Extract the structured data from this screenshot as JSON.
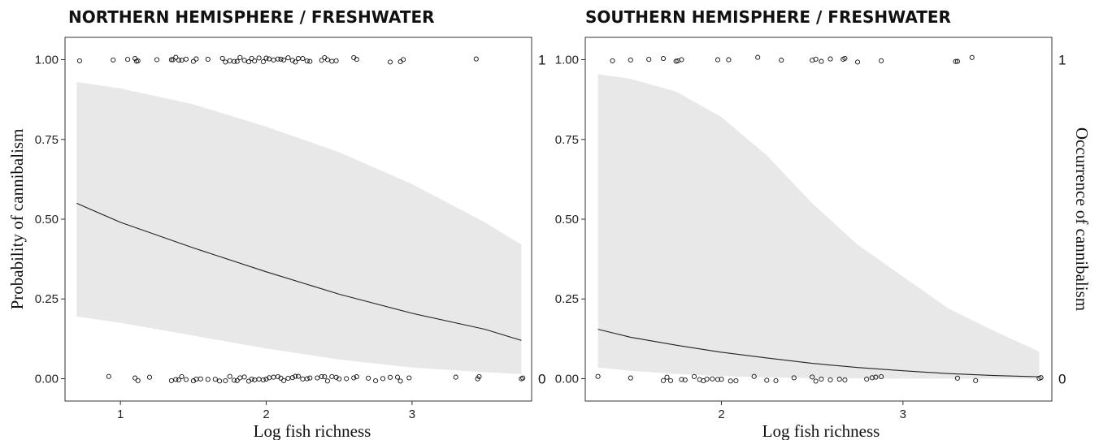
{
  "chart_data": [
    {
      "type": "line",
      "title": "NORTHERN HEMISPHERE / FRESHWATER",
      "xlabel": "Log fish richness",
      "ylabel": "Probability of cannibalism",
      "xlim": [
        0.62,
        3.82
      ],
      "ylim": [
        -0.07,
        1.07
      ],
      "x_ticks": [
        1,
        2,
        3
      ],
      "y_ticks": [
        0.0,
        0.25,
        0.5,
        0.75,
        1.0
      ],
      "y_tick_labels": [
        "0.00",
        "0.25",
        "0.50",
        "0.75",
        "1.00"
      ],
      "secondary_y_ticks": [
        0,
        1
      ],
      "secondary_y_tick_labels": [
        "0",
        "1"
      ],
      "secondary_ylabel": "",
      "grid": false,
      "fit": {
        "x": [
          0.7,
          1.0,
          1.5,
          2.0,
          2.5,
          3.0,
          3.5,
          3.75
        ],
        "y": [
          0.55,
          0.49,
          0.41,
          0.335,
          0.265,
          0.205,
          0.155,
          0.12
        ]
      },
      "ci_lower": {
        "x": [
          0.7,
          1.0,
          1.5,
          2.0,
          2.5,
          3.0,
          3.5,
          3.75
        ],
        "y": [
          0.195,
          0.175,
          0.135,
          0.095,
          0.06,
          0.035,
          0.02,
          0.015
        ]
      },
      "ci_upper": {
        "x": [
          0.7,
          1.0,
          1.5,
          2.0,
          2.5,
          3.0,
          3.5,
          3.75
        ],
        "y": [
          0.93,
          0.91,
          0.86,
          0.79,
          0.71,
          0.61,
          0.49,
          0.42
        ]
      },
      "points_occurrence_1_x": [
        0.72,
        0.95,
        1.05,
        1.1,
        1.11,
        1.12,
        1.25,
        1.35,
        1.36,
        1.38,
        1.4,
        1.42,
        1.45,
        1.5,
        1.52,
        1.6,
        1.7,
        1.72,
        1.75,
        1.78,
        1.8,
        1.82,
        1.85,
        1.88,
        1.9,
        1.92,
        1.95,
        1.98,
        2.0,
        2.02,
        2.05,
        2.08,
        2.1,
        2.12,
        2.15,
        2.18,
        2.2,
        2.22,
        2.25,
        2.28,
        2.3,
        2.38,
        2.4,
        2.42,
        2.45,
        2.48,
        2.6,
        2.62,
        2.85,
        2.92,
        2.94,
        3.44
      ],
      "points_occurrence_0_x": [
        0.92,
        1.1,
        1.12,
        1.2,
        1.35,
        1.38,
        1.4,
        1.42,
        1.45,
        1.5,
        1.52,
        1.55,
        1.6,
        1.65,
        1.68,
        1.72,
        1.75,
        1.78,
        1.8,
        1.82,
        1.85,
        1.88,
        1.9,
        1.92,
        1.95,
        1.98,
        2.0,
        2.02,
        2.05,
        2.08,
        2.1,
        2.12,
        2.15,
        2.18,
        2.2,
        2.22,
        2.25,
        2.28,
        2.3,
        2.35,
        2.38,
        2.4,
        2.42,
        2.45,
        2.48,
        2.5,
        2.55,
        2.6,
        2.62,
        2.7,
        2.75,
        2.8,
        2.85,
        2.9,
        2.92,
        2.98,
        3.3,
        3.45,
        3.46,
        3.75,
        3.76
      ]
    },
    {
      "type": "line",
      "title": "SOUTHERN HEMISPHERE / FRESHWATER",
      "xlabel": "Log fish richness",
      "ylabel": "",
      "xlim": [
        1.25,
        3.82
      ],
      "ylim": [
        -0.07,
        1.07
      ],
      "x_ticks": [
        2,
        3
      ],
      "y_ticks": [
        0.0,
        0.25,
        0.5,
        0.75,
        1.0
      ],
      "y_tick_labels": [
        "0.00",
        "0.25",
        "0.50",
        "0.75",
        "1.00"
      ],
      "secondary_y_ticks": [
        0,
        1
      ],
      "secondary_y_tick_labels": [
        "0",
        "1"
      ],
      "secondary_ylabel": "Occurrence of cannibalism",
      "grid": false,
      "fit": {
        "x": [
          1.32,
          1.5,
          1.75,
          2.0,
          2.25,
          2.5,
          2.75,
          3.0,
          3.25,
          3.5,
          3.75
        ],
        "y": [
          0.155,
          0.13,
          0.105,
          0.083,
          0.065,
          0.048,
          0.035,
          0.025,
          0.016,
          0.01,
          0.006
        ]
      },
      "ci_lower": {
        "x": [
          1.32,
          1.5,
          1.75,
          2.0,
          2.25,
          2.5,
          2.75,
          3.0,
          3.25,
          3.5,
          3.75
        ],
        "y": [
          0.035,
          0.025,
          0.015,
          0.008,
          0.004,
          0.002,
          0.001,
          0.0,
          0.0,
          0.0,
          0.0
        ]
      },
      "ci_upper": {
        "x": [
          1.32,
          1.5,
          1.75,
          2.0,
          2.25,
          2.5,
          2.75,
          3.0,
          3.25,
          3.5,
          3.75
        ],
        "y": [
          0.955,
          0.94,
          0.9,
          0.82,
          0.7,
          0.55,
          0.42,
          0.32,
          0.22,
          0.15,
          0.085
        ]
      },
      "points_occurrence_1_x": [
        1.4,
        1.5,
        1.6,
        1.68,
        1.75,
        1.76,
        1.78,
        1.98,
        2.04,
        2.2,
        2.33,
        2.5,
        2.52,
        2.55,
        2.6,
        2.67,
        2.68,
        2.75,
        2.88,
        3.29,
        3.3,
        3.38
      ],
      "points_occurrence_0_x": [
        1.32,
        1.5,
        1.68,
        1.7,
        1.72,
        1.78,
        1.8,
        1.85,
        1.88,
        1.9,
        1.92,
        1.95,
        1.98,
        2.0,
        2.05,
        2.08,
        2.18,
        2.25,
        2.3,
        2.4,
        2.5,
        2.52,
        2.55,
        2.6,
        2.65,
        2.68,
        2.8,
        2.83,
        2.85,
        2.88,
        3.3,
        3.4,
        3.75,
        3.76
      ]
    }
  ]
}
